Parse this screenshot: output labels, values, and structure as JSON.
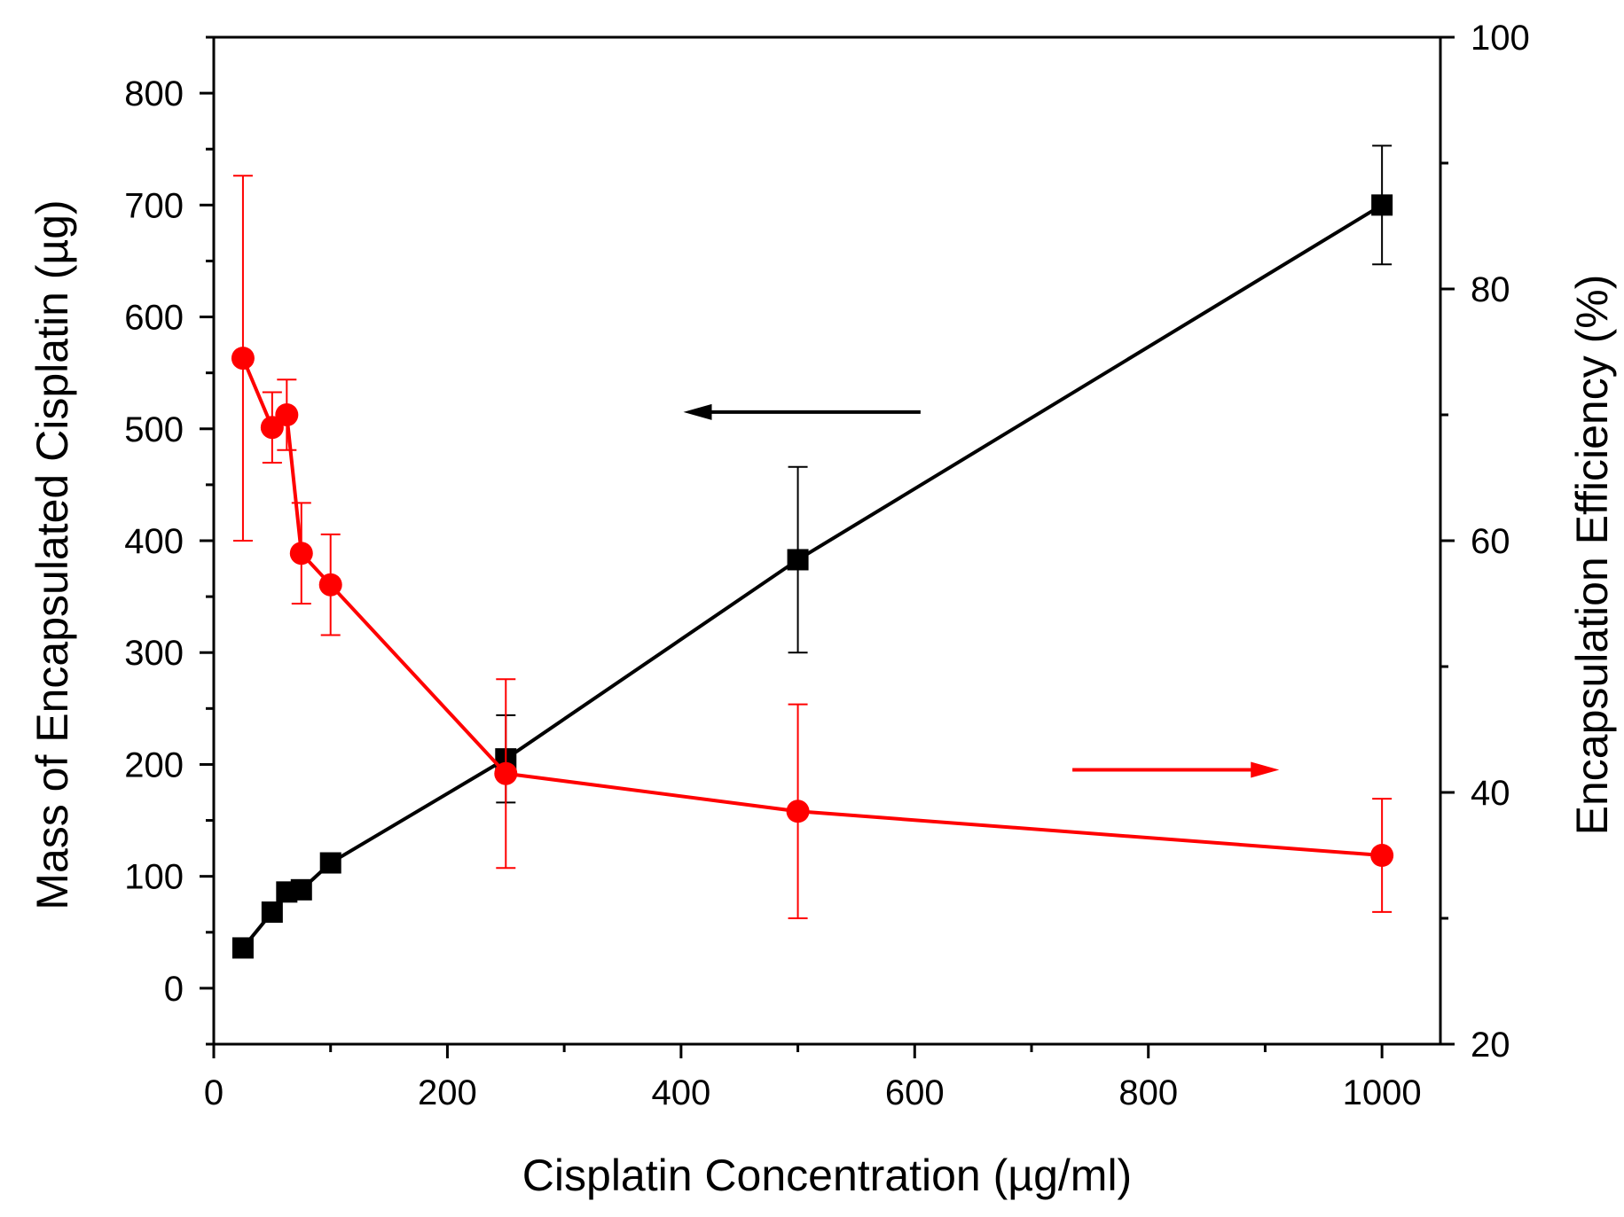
{
  "chart_data": {
    "type": "line",
    "title": "",
    "xlabel": "Cisplatin Concentration (µg/ml)",
    "ylabel": "Mass of Encapsulated Cisplatin (µg)",
    "y2label": "Encapsulation Efficiency (%)",
    "xlim": [
      0,
      1050
    ],
    "ylim": [
      -50,
      850
    ],
    "y2lim": [
      20,
      100
    ],
    "x_ticks": [
      0,
      200,
      400,
      600,
      800,
      1000
    ],
    "y_ticks": [
      0,
      100,
      200,
      300,
      400,
      500,
      600,
      700,
      800
    ],
    "y2_ticks": [
      20,
      40,
      60,
      80,
      100
    ],
    "grid": false,
    "series": [
      {
        "name": "Mass of Encapsulated Cisplatin",
        "axis": "left",
        "color": "#000000",
        "marker": "square",
        "arrow_direction": "left",
        "x": [
          25,
          50,
          62.5,
          75,
          100,
          250,
          500,
          1000
        ],
        "y": [
          36,
          68,
          86,
          88,
          112,
          205,
          383,
          700
        ],
        "err": [
          0,
          0,
          0,
          0,
          0,
          39,
          83,
          53
        ]
      },
      {
        "name": "Encapsulation Efficiency",
        "axis": "right",
        "color": "#ff0000",
        "marker": "circle",
        "arrow_direction": "right",
        "x": [
          25,
          50,
          62.5,
          75,
          100,
          250,
          500,
          1000
        ],
        "y": [
          74.5,
          69,
          70,
          59,
          56.5,
          41.5,
          38.5,
          35
        ],
        "err": [
          14.5,
          2.8,
          2.8,
          4,
          4,
          7.5,
          8.5,
          4.5
        ]
      }
    ]
  }
}
